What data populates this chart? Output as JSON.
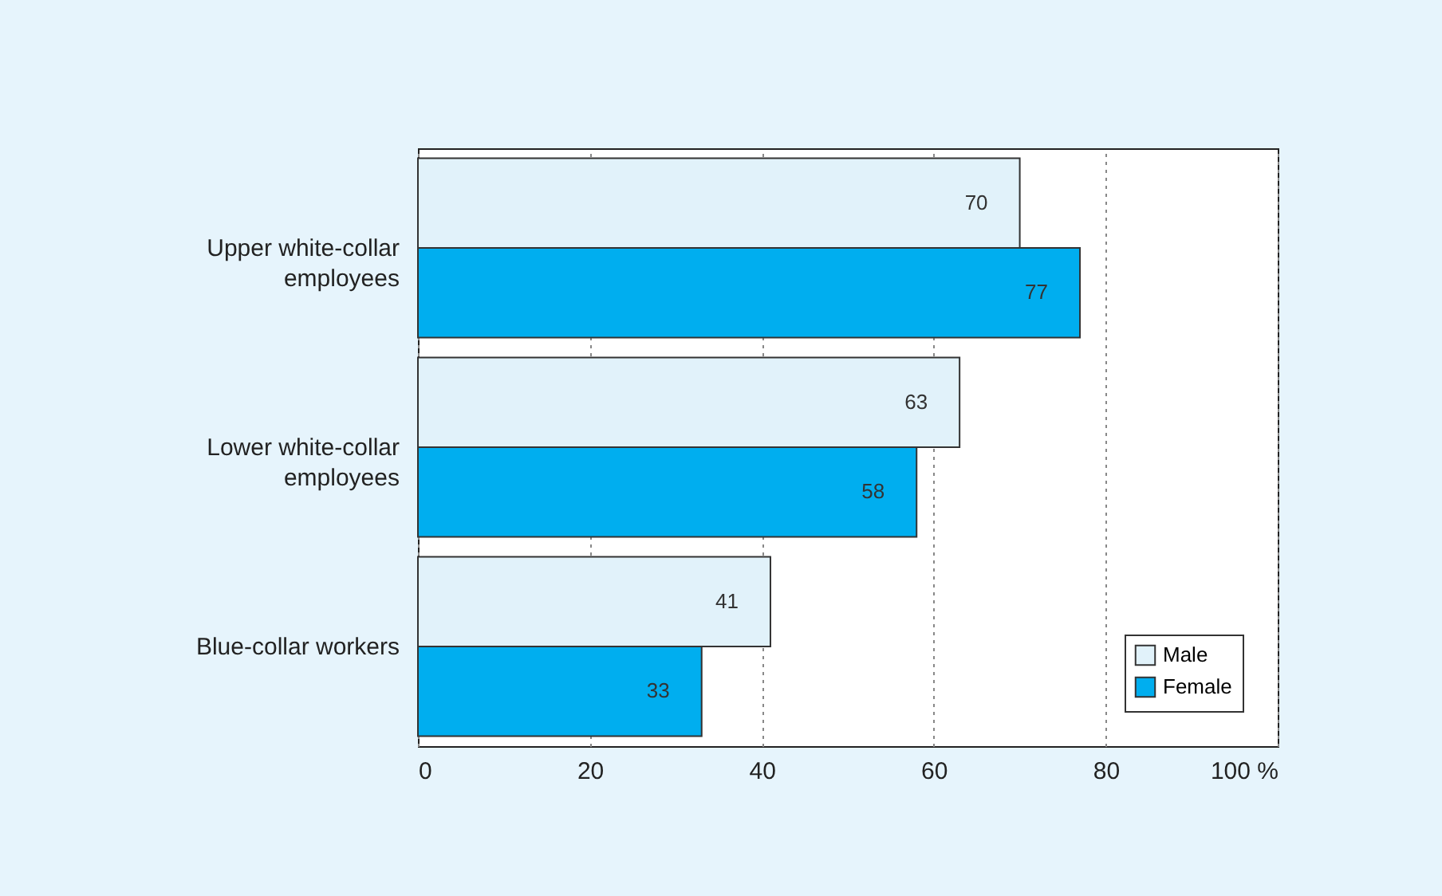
{
  "chart_data": {
    "type": "bar",
    "orientation": "horizontal",
    "categories": [
      "Upper white-collar\nemployees",
      "Lower white-collar\nemployees",
      "Blue-collar workers"
    ],
    "series": [
      {
        "name": "Male",
        "color": "#e1f2fa",
        "values": [
          70,
          63,
          41
        ]
      },
      {
        "name": "Female",
        "color": "#00aeef",
        "values": [
          77,
          58,
          33
        ]
      }
    ],
    "xlim": [
      0,
      100
    ],
    "xticks": [
      0,
      20,
      40,
      60,
      80,
      {
        "value": 100,
        "label": "100 %"
      }
    ],
    "grid": "x",
    "legend": "bottom right",
    "data_labels": true
  }
}
